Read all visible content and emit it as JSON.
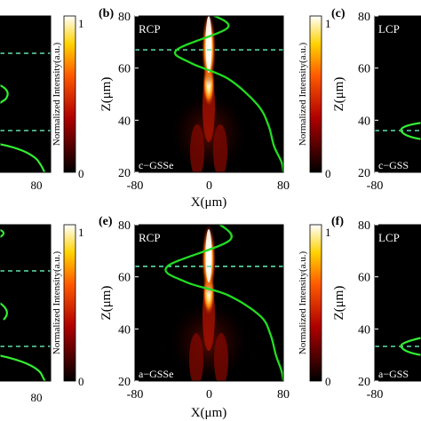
{
  "figure": {
    "colorbar_label": "Normalized Intensity(a.u.)",
    "colorbar_ticks": [
      "1",
      "0"
    ],
    "x_axis_label": "X(μm)",
    "y_axis_label": "Z(μm)"
  },
  "chart_data": [
    {
      "type": "heatmap",
      "panel_label": "(b)",
      "polarization_label": "RCP",
      "material_label": "c−GSSe",
      "xlabel": "X(μm)",
      "ylabel": "Z(μm)",
      "xlim": [
        -80,
        80
      ],
      "ylim": [
        20,
        80
      ],
      "x_ticks": [
        "-80",
        "0",
        "80"
      ],
      "y_ticks": [
        "80",
        "60",
        "40",
        "20"
      ],
      "colorbar": {
        "label": "Normalized Intensity(a.u.)",
        "range": [
          0,
          1
        ],
        "ticks": [
          "1",
          "0"
        ],
        "colormap": "hot"
      },
      "focus_peak_z": 67,
      "dashed_line_z": 67,
      "profile_curve": {
        "color": "#22dd22",
        "points": [
          [
            0,
            81
          ],
          [
            20,
            75.5
          ],
          [
            -35,
            67
          ],
          [
            -20,
            62
          ],
          [
            20,
            56
          ],
          [
            52,
            46
          ],
          [
            64,
            38
          ],
          [
            70,
            30
          ],
          [
            78,
            24
          ],
          [
            80,
            20
          ]
        ]
      }
    },
    {
      "type": "heatmap",
      "panel_label": "(c)",
      "polarization_label": "LCP",
      "material_label": "c−GSS",
      "xlabel": "X(μm)",
      "ylabel": "Z(μm)",
      "xlim": [
        -80,
        80
      ],
      "ylim": [
        20,
        80
      ],
      "x_ticks": [
        "-80"
      ],
      "y_ticks": [
        "80",
        "60",
        "40",
        "20"
      ],
      "dashed_line_z": 36
    },
    {
      "type": "heatmap",
      "panel_label": "(e)",
      "polarization_label": "RCP",
      "material_label": "a−GSSe",
      "xlabel": "X(μm)",
      "ylabel": "Z(μm)",
      "xlim": [
        -80,
        80
      ],
      "ylim": [
        20,
        80
      ],
      "x_ticks": [
        "-80",
        "0",
        "80"
      ],
      "y_ticks": [
        "80",
        "60",
        "40",
        "20"
      ],
      "colorbar": {
        "label": "Normalized Intensity(a.u.)",
        "range": [
          0,
          1
        ],
        "ticks": [
          "1",
          "0"
        ],
        "colormap": "hot"
      },
      "focus_peak_z": 66,
      "dashed_line_z": 64,
      "profile_curve": {
        "color": "#22dd22",
        "points": [
          [
            8,
            81
          ],
          [
            22,
            74
          ],
          [
            -45,
            64
          ],
          [
            -25,
            58
          ],
          [
            20,
            53
          ],
          [
            55,
            45
          ],
          [
            66,
            38
          ],
          [
            72,
            30
          ],
          [
            78,
            24
          ],
          [
            80,
            20
          ]
        ]
      }
    },
    {
      "type": "heatmap",
      "panel_label": "(f)",
      "polarization_label": "LCP",
      "material_label": "a−GSS",
      "xlabel": "X(μm)",
      "ylabel": "Z(μm)",
      "xlim": [
        -80,
        80
      ],
      "ylim": [
        20,
        80
      ],
      "x_ticks": [
        "-80"
      ],
      "y_ticks": [
        "80",
        "60",
        "40",
        "20"
      ],
      "dashed_line_z": 33
    }
  ],
  "left_partial_panels": [
    {
      "x_tick": "80",
      "dashed_lines_z": [
        68,
        37
      ]
    },
    {
      "x_tick": "80",
      "dashed_lines_z": [
        63,
        33
      ]
    }
  ]
}
